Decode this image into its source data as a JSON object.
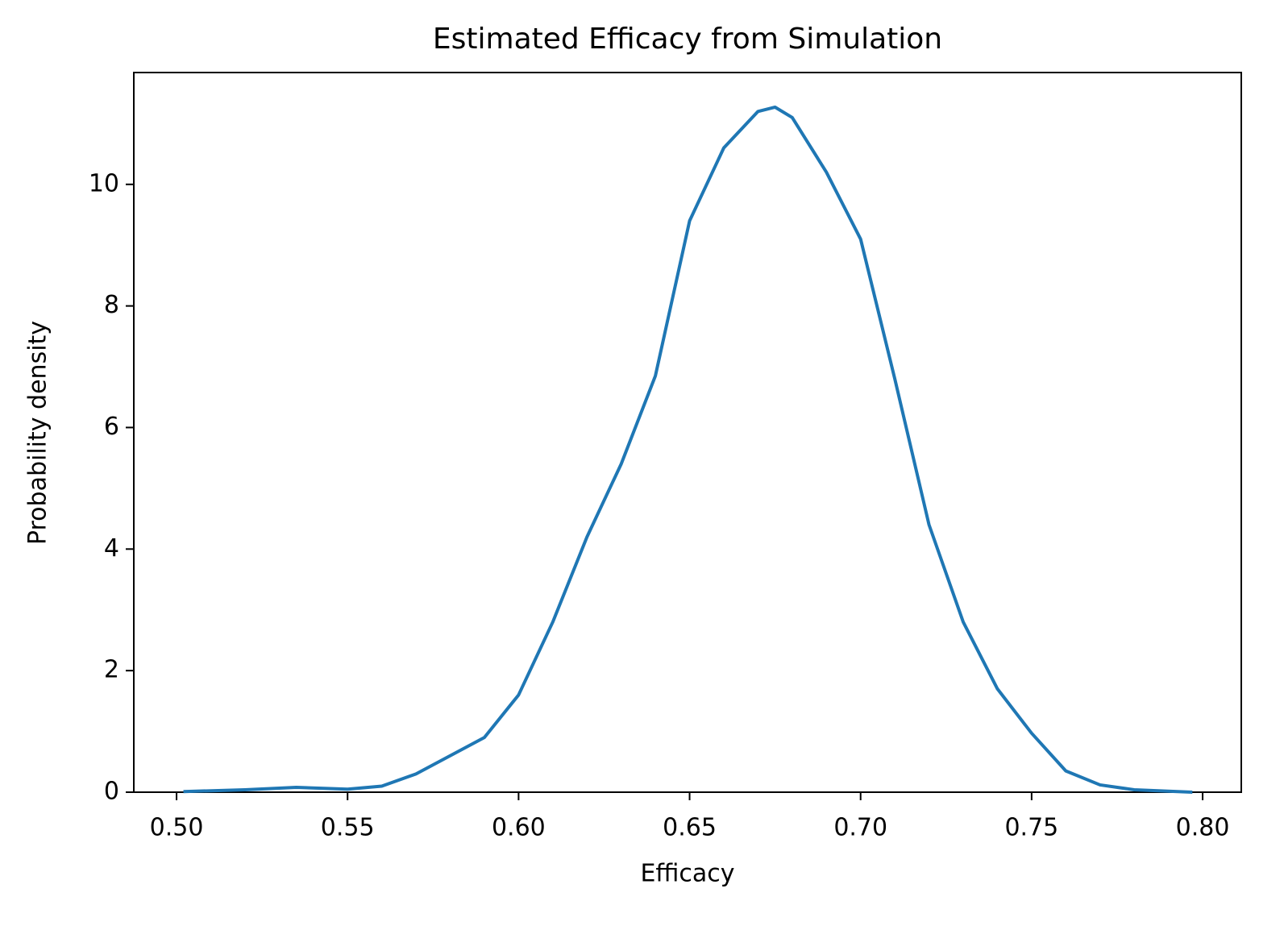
{
  "chart_data": {
    "type": "line",
    "title": "Estimated Efficacy from Simulation",
    "x_label": "Efficacy",
    "y_label": "Probability density",
    "x": [
      0.502,
      0.52,
      0.535,
      0.55,
      0.56,
      0.57,
      0.58,
      0.59,
      0.6,
      0.61,
      0.62,
      0.63,
      0.64,
      0.65,
      0.66,
      0.67,
      0.675,
      0.68,
      0.69,
      0.7,
      0.71,
      0.72,
      0.73,
      0.74,
      0.75,
      0.76,
      0.77,
      0.78,
      0.797
    ],
    "series": [
      {
        "color": "#1f77b4",
        "values": [
          0.01,
          0.04,
          0.08,
          0.05,
          0.1,
          0.3,
          0.6,
          0.9,
          1.6,
          2.8,
          4.2,
          5.4,
          6.85,
          9.4,
          10.6,
          11.2,
          11.27,
          11.1,
          10.2,
          9.1,
          6.8,
          4.4,
          2.8,
          1.7,
          0.97,
          0.35,
          0.12,
          0.04,
          0.0
        ]
      }
    ],
    "xlim": [
      0.4875,
      0.8113
    ],
    "ylim": [
      0,
      11.84
    ],
    "xticks": [
      {
        "value": 0.5,
        "label": "0.50"
      },
      {
        "value": 0.55,
        "label": "0.55"
      },
      {
        "value": 0.6,
        "label": "0.60"
      },
      {
        "value": 0.65,
        "label": "0.65"
      },
      {
        "value": 0.7,
        "label": "0.70"
      },
      {
        "value": 0.75,
        "label": "0.75"
      },
      {
        "value": 0.8,
        "label": "0.80"
      }
    ],
    "yticks": [
      0,
      2,
      4,
      6,
      8,
      10
    ],
    "grid": false
  }
}
